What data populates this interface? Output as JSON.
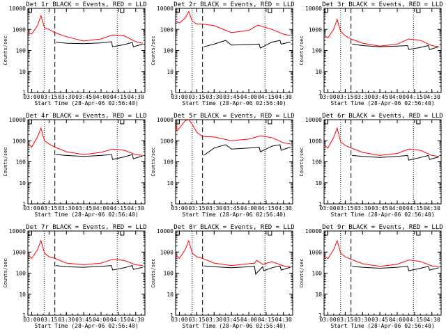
{
  "panels_meta": {
    "xlabel": "Start Time (28-Apr-06 02:56:40)",
    "ylabel": "Counts/sec",
    "x_ticks": [
      "03:00",
      "03:15",
      "03:30",
      "03:45",
      "04:00",
      "04:15",
      "04:30"
    ],
    "y_ticks": [
      "1",
      "10",
      "100",
      "1000",
      "10000"
    ],
    "legend_black": "BLACK = Events",
    "legend_red": "RED = LLD",
    "dashed_marker": "03:20",
    "dotted_markers": [
      "03:11",
      "04:14"
    ],
    "box_markers": [
      "02:58",
      "04:18"
    ],
    "colors": {
      "events": "#000000",
      "lld": "#ff0000",
      "axis": "#000000"
    }
  },
  "chart_data": [
    {
      "type": "line",
      "title": "Det 1r BLACK = Events, RED = LLD",
      "x_range": [
        "02:56:40",
        "04:38"
      ],
      "ylim": [
        1,
        10000
      ],
      "log_y": true,
      "series": [
        {
          "name": "Events",
          "color": "black",
          "x": [
            "03:21",
            "03:30",
            "03:45",
            "04:00",
            "04:09",
            "04:10",
            "04:20",
            "04:27",
            "04:28",
            "04:36"
          ],
          "values": [
            250,
            220,
            210,
            230,
            260,
            150,
            190,
            240,
            150,
            200
          ]
        },
        {
          "name": "LLD",
          "color": "red",
          "x": [
            "02:57",
            "03:00",
            "03:05",
            "03:08",
            "03:11",
            "03:15",
            "03:20",
            "03:30",
            "03:45",
            "04:00",
            "04:10",
            "04:20",
            "04:30",
            "04:36"
          ],
          "values": [
            700,
            600,
            1500,
            4500,
            1200,
            1000,
            700,
            450,
            280,
            350,
            550,
            500,
            260,
            220
          ]
        }
      ]
    },
    {
      "type": "line",
      "title": "Det 2r BLACK = Events, RED = LLD",
      "x_range": [
        "02:56:40",
        "04:38"
      ],
      "ylim": [
        1,
        10000
      ],
      "log_y": true,
      "series": [
        {
          "name": "Events",
          "color": "black",
          "x": [
            "03:21",
            "03:30",
            "03:40",
            "03:45",
            "04:00",
            "04:09",
            "04:10",
            "04:20",
            "04:27",
            "04:28",
            "04:36"
          ],
          "values": [
            150,
            200,
            300,
            180,
            190,
            200,
            130,
            250,
            300,
            200,
            250
          ]
        },
        {
          "name": "LLD",
          "color": "red",
          "x": [
            "02:57",
            "03:00",
            "03:05",
            "03:08",
            "03:11",
            "03:15",
            "03:20",
            "03:30",
            "03:45",
            "04:00",
            "04:08",
            "04:20",
            "04:30",
            "04:36"
          ],
          "values": [
            2500,
            2000,
            3500,
            7000,
            2500,
            1800,
            1800,
            1500,
            700,
            900,
            1600,
            1000,
            600,
            500
          ]
        }
      ]
    },
    {
      "type": "line",
      "title": "Det 3r BLACK = Events, RED = LLD",
      "x_range": [
        "02:56:40",
        "04:38"
      ],
      "ylim": [
        1,
        10000
      ],
      "log_y": true,
      "series": [
        {
          "name": "Events",
          "color": "black",
          "x": [
            "03:21",
            "03:30",
            "03:45",
            "04:00",
            "04:09",
            "04:10",
            "04:20",
            "04:27",
            "04:28",
            "04:36"
          ],
          "values": [
            200,
            170,
            150,
            160,
            170,
            110,
            140,
            170,
            110,
            150
          ]
        },
        {
          "name": "LLD",
          "color": "red",
          "x": [
            "02:57",
            "03:00",
            "03:05",
            "03:08",
            "03:11",
            "03:15",
            "03:20",
            "03:30",
            "03:45",
            "04:00",
            "04:10",
            "04:20",
            "04:30",
            "04:36"
          ],
          "values": [
            500,
            400,
            1000,
            3000,
            800,
            500,
            350,
            220,
            160,
            200,
            350,
            300,
            170,
            150
          ]
        }
      ]
    },
    {
      "type": "line",
      "title": "Det 4r BLACK = Events, RED = LLD",
      "x_range": [
        "02:56:40",
        "04:38"
      ],
      "ylim": [
        1,
        10000
      ],
      "log_y": true,
      "series": [
        {
          "name": "Events",
          "color": "black",
          "x": [
            "03:21",
            "03:30",
            "03:45",
            "04:00",
            "04:09",
            "04:10",
            "04:20",
            "04:27",
            "04:28",
            "04:36"
          ],
          "values": [
            220,
            200,
            180,
            200,
            220,
            130,
            170,
            220,
            140,
            190
          ]
        },
        {
          "name": "LLD",
          "color": "red",
          "x": [
            "02:57",
            "03:00",
            "03:05",
            "03:08",
            "03:11",
            "03:15",
            "03:20",
            "03:30",
            "03:45",
            "04:00",
            "04:10",
            "04:20",
            "04:30",
            "04:36"
          ],
          "values": [
            700,
            500,
            1500,
            4000,
            1000,
            700,
            500,
            300,
            220,
            280,
            400,
            350,
            220,
            200
          ]
        }
      ]
    },
    {
      "type": "line",
      "title": "Det 5r BLACK = Events, RED = LLD",
      "x_range": [
        "02:56:40",
        "04:38"
      ],
      "ylim": [
        1,
        10000
      ],
      "log_y": true,
      "series": [
        {
          "name": "Events",
          "color": "black",
          "x": [
            "03:21",
            "03:30",
            "03:40",
            "03:45",
            "04:00",
            "04:09",
            "04:10",
            "04:20",
            "04:27",
            "04:28",
            "04:36"
          ],
          "values": [
            200,
            450,
            650,
            400,
            450,
            500,
            300,
            550,
            650,
            350,
            500
          ]
        },
        {
          "name": "LLD",
          "color": "red",
          "x": [
            "02:57",
            "02:58",
            "03:00",
            "03:05",
            "03:08",
            "03:11",
            "03:15",
            "03:20",
            "03:30",
            "03:45",
            "04:00",
            "04:10",
            "04:20",
            "04:30",
            "04:36"
          ],
          "values": [
            6000,
            3000,
            4000,
            9000,
            10000,
            6000,
            2500,
            1600,
            1500,
            1000,
            1200,
            1700,
            1400,
            800,
            700
          ]
        }
      ]
    },
    {
      "type": "line",
      "title": "Det 6r BLACK = Events, RED = LLD",
      "x_range": [
        "02:56:40",
        "04:38"
      ],
      "ylim": [
        1,
        10000
      ],
      "log_y": true,
      "series": [
        {
          "name": "Events",
          "color": "black",
          "x": [
            "03:21",
            "03:30",
            "03:45",
            "04:00",
            "04:09",
            "04:10",
            "04:20",
            "04:27",
            "04:28",
            "04:36"
          ],
          "values": [
            200,
            180,
            160,
            180,
            200,
            120,
            160,
            200,
            130,
            170
          ]
        },
        {
          "name": "LLD",
          "color": "red",
          "x": [
            "02:57",
            "03:00",
            "03:05",
            "03:08",
            "03:11",
            "03:15",
            "03:20",
            "03:30",
            "03:45",
            "04:00",
            "04:10",
            "04:20",
            "04:30",
            "04:36"
          ],
          "values": [
            600,
            450,
            1400,
            4000,
            900,
            600,
            450,
            280,
            200,
            250,
            400,
            350,
            200,
            180
          ]
        }
      ]
    },
    {
      "type": "line",
      "title": "Det 7r BLACK = Events, RED = LLD",
      "x_range": [
        "02:56:40",
        "04:38"
      ],
      "ylim": [
        1,
        10000
      ],
      "log_y": true,
      "series": [
        {
          "name": "Events",
          "color": "black",
          "x": [
            "03:21",
            "03:30",
            "03:45",
            "04:00",
            "04:09",
            "04:10",
            "04:20",
            "04:27",
            "04:28",
            "04:36"
          ],
          "values": [
            230,
            200,
            190,
            210,
            230,
            140,
            180,
            230,
            150,
            190
          ]
        },
        {
          "name": "LLD",
          "color": "red",
          "x": [
            "02:57",
            "03:00",
            "03:05",
            "03:08",
            "03:11",
            "03:15",
            "03:20",
            "03:30",
            "03:45",
            "04:00",
            "04:10",
            "04:20",
            "04:30",
            "04:36"
          ],
          "values": [
            700,
            500,
            1300,
            3500,
            900,
            600,
            500,
            300,
            250,
            300,
            450,
            400,
            250,
            230
          ]
        }
      ]
    },
    {
      "type": "line",
      "title": "Det 8r BLACK = Events, RED = LLD",
      "x_range": [
        "02:56:40",
        "04:38"
      ],
      "ylim": [
        1,
        10000
      ],
      "log_y": true,
      "series": [
        {
          "name": "Events",
          "color": "black",
          "x": [
            "03:21",
            "03:30",
            "03:45",
            "04:00",
            "04:05",
            "04:06",
            "04:12",
            "04:13",
            "04:20",
            "04:27",
            "04:28",
            "04:36"
          ],
          "values": [
            220,
            200,
            180,
            200,
            210,
            90,
            200,
            130,
            180,
            220,
            140,
            190
          ]
        },
        {
          "name": "LLD",
          "color": "red",
          "x": [
            "02:57",
            "03:00",
            "03:05",
            "03:08",
            "03:11",
            "03:15",
            "03:20",
            "03:30",
            "03:45",
            "04:00",
            "04:05",
            "04:07",
            "04:12",
            "04:20",
            "04:30",
            "04:36"
          ],
          "values": [
            700,
            500,
            1300,
            3500,
            900,
            600,
            500,
            300,
            230,
            280,
            300,
            400,
            260,
            350,
            220,
            200
          ]
        }
      ]
    },
    {
      "type": "line",
      "title": "Det 9r BLACK = Events, RED = LLD",
      "x_range": [
        "02:56:40",
        "04:38"
      ],
      "ylim": [
        1,
        10000
      ],
      "log_y": true,
      "series": [
        {
          "name": "Events",
          "color": "black",
          "x": [
            "03:21",
            "03:30",
            "03:45",
            "04:00",
            "04:09",
            "04:10",
            "04:20",
            "04:27",
            "04:28",
            "04:36"
          ],
          "values": [
            210,
            190,
            170,
            190,
            210,
            130,
            170,
            210,
            140,
            180
          ]
        },
        {
          "name": "LLD",
          "color": "red",
          "x": [
            "02:57",
            "03:00",
            "03:05",
            "03:08",
            "03:11",
            "03:15",
            "03:20",
            "03:30",
            "03:45",
            "04:00",
            "04:10",
            "04:20",
            "04:30",
            "04:36"
          ],
          "values": [
            650,
            480,
            1300,
            3500,
            900,
            600,
            450,
            280,
            210,
            260,
            420,
            360,
            220,
            200
          ]
        }
      ]
    }
  ]
}
